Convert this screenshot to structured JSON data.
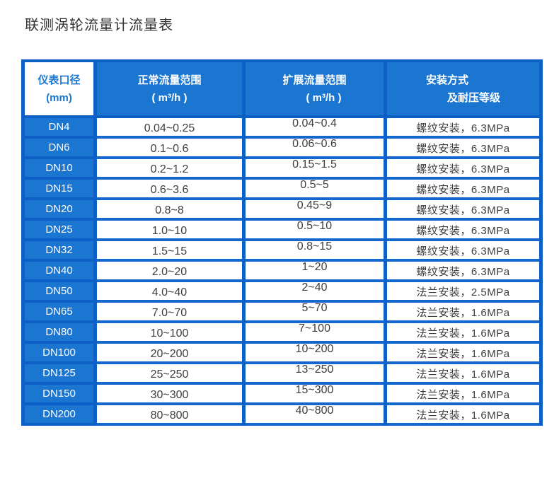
{
  "page": {
    "title": "联测涡轮流量计流量表"
  },
  "colors": {
    "table_blue": "#1b76d2",
    "grid_dark_blue": "#0d61c6",
    "grid_light_blue": "#1468cd",
    "header_text": "#ffffff",
    "diameter_header_text": "#1b76d2",
    "cell_text": "#3d3d3d",
    "title_text": "#333333"
  },
  "table": {
    "headers": [
      {
        "line1": "仪表口径",
        "line2": "(mm)"
      },
      {
        "line1": "正常流量范围",
        "line2": "( m³/h )"
      },
      {
        "line1": "扩展流量范围",
        "line2": "( m³/h )"
      },
      {
        "line1": "安装方式",
        "line2": "及耐压等级"
      }
    ],
    "rows": [
      {
        "dn": "DN4",
        "normal": "0.04~0.25",
        "extended": "0.04~0.4",
        "install": "螺纹安装，6.3MPa"
      },
      {
        "dn": "DN6",
        "normal": "0.1~0.6",
        "extended": "0.06~0.6",
        "install": "螺纹安装，6.3MPa"
      },
      {
        "dn": "DN10",
        "normal": "0.2~1.2",
        "extended": "0.15~1.5",
        "install": "螺纹安装，6.3MPa"
      },
      {
        "dn": "DN15",
        "normal": "0.6~3.6",
        "extended": "0.5~5",
        "install": "螺纹安装，6.3MPa"
      },
      {
        "dn": "DN20",
        "normal": "0.8~8",
        "extended": "0.45~9",
        "install": "螺纹安装，6.3MPa"
      },
      {
        "dn": "DN25",
        "normal": "1.0~10",
        "extended": "0.5~10",
        "install": "螺纹安装，6.3MPa"
      },
      {
        "dn": "DN32",
        "normal": "1.5~15",
        "extended": "0.8~15",
        "install": "螺纹安装，6.3MPa"
      },
      {
        "dn": "DN40",
        "normal": "2.0~20",
        "extended": "1~20",
        "install": "螺纹安装，6.3MPa"
      },
      {
        "dn": "DN50",
        "normal": "4.0~40",
        "extended": "2~40",
        "install": "法兰安装，2.5MPa"
      },
      {
        "dn": "DN65",
        "normal": "7.0~70",
        "extended": "5~70",
        "install": "法兰安装，1.6MPa"
      },
      {
        "dn": "DN80",
        "normal": "10~100",
        "extended": "7~100",
        "install": "法兰安装，1.6MPa"
      },
      {
        "dn": "DN100",
        "normal": "20~200",
        "extended": "10~200",
        "install": "法兰安装，1.6MPa"
      },
      {
        "dn": "DN125",
        "normal": "25~250",
        "extended": "13~250",
        "install": "法兰安装，1.6MPa"
      },
      {
        "dn": "DN150",
        "normal": "30~300",
        "extended": "15~300",
        "install": "法兰安装，1.6MPa"
      },
      {
        "dn": "DN200",
        "normal": "80~800",
        "extended": "40~800",
        "install": "法兰安装，1.6MPa"
      }
    ]
  }
}
